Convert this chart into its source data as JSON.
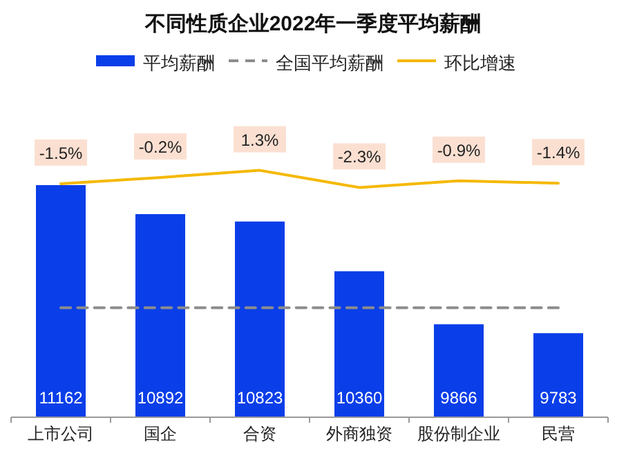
{
  "chart_data": {
    "type": "bar",
    "title": "不同性质企业2022年一季度平均薪酬",
    "categories": [
      "上市公司",
      "国企",
      "合资",
      "外商独资",
      "股份制企业",
      "民营"
    ],
    "series": [
      {
        "name": "平均薪酬",
        "color": "#0a3ee8",
        "values": [
          11162,
          10892,
          10823,
          10360,
          9866,
          9783
        ],
        "value_labels": [
          "11162",
          "10892",
          "10823",
          "10360",
          "9866",
          "9783"
        ]
      },
      {
        "name": "全国平均薪酬",
        "type": "line",
        "color": "#8c8c8c",
        "line_style": "dashed",
        "values": [
          10020,
          10020,
          10020,
          10020,
          10020,
          10020
        ]
      },
      {
        "name": "环比增速",
        "type": "line",
        "axis": "y2",
        "color": "#f5b800",
        "values": [
          -1.5,
          -0.2,
          1.3,
          -2.3,
          -0.9,
          -1.4
        ],
        "value_labels": [
          "-1.5%",
          "-0.2%",
          "1.3%",
          "-2.3%",
          "-0.9%",
          "-1.4%"
        ]
      }
    ],
    "ylim": [
      9000,
      11162
    ],
    "legend": "top",
    "tick_labels": "x"
  }
}
